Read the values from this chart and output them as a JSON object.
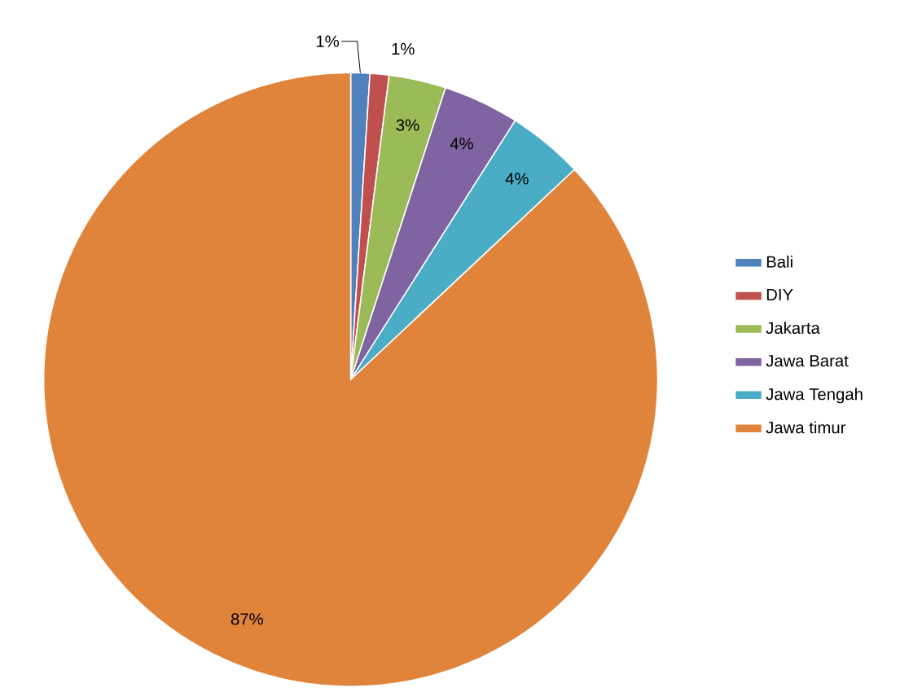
{
  "chart_data": {
    "type": "pie",
    "categories": [
      "Bali",
      "DIY",
      "Jakarta",
      "Jawa Barat",
      "Jawa Tengah",
      "Jawa timur"
    ],
    "values": [
      1,
      1,
      3,
      4,
      4,
      87
    ],
    "value_labels": [
      "1%",
      "1%",
      "3%",
      "4%",
      "4%",
      "87%"
    ],
    "colors": [
      "#4f81bd",
      "#c0504d",
      "#9bbb59",
      "#8064a2",
      "#4bacc6",
      "#e0843c"
    ],
    "legend": "right"
  }
}
